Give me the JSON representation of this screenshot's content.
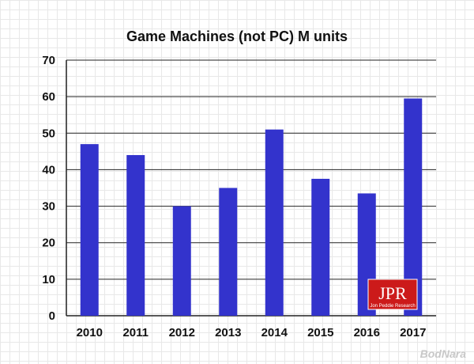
{
  "chart_data": {
    "type": "bar",
    "title": "Game Machines (not PC) M units",
    "categories": [
      "2010",
      "2011",
      "2012",
      "2013",
      "2014",
      "2015",
      "2016",
      "2017"
    ],
    "values": [
      47,
      44,
      30,
      35,
      51,
      37.5,
      33.5,
      59.5
    ],
    "ylim": [
      0,
      70
    ],
    "yticks": [
      "0",
      "10",
      "20",
      "30",
      "40",
      "50",
      "60",
      "70"
    ],
    "grid": true,
    "colors": {
      "bar": "#3333cc"
    }
  },
  "logo": {
    "text": "JPR",
    "subtext": "Jon Peddie Research",
    "color": "#cc1a1a"
  },
  "watermark": {
    "text": "BodNara"
  }
}
